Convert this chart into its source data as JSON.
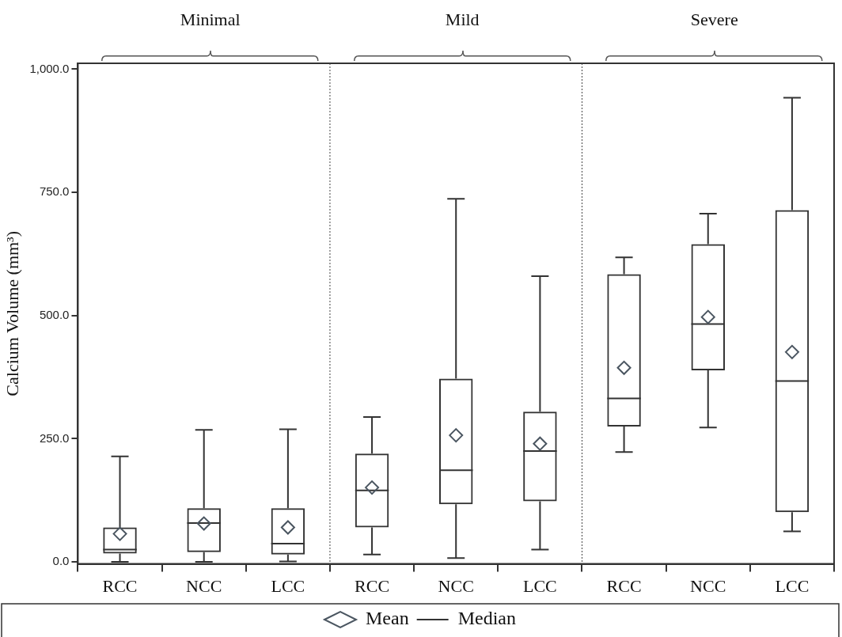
{
  "chart_data": {
    "type": "box",
    "ylabel": "Calcium Volume (mm³)",
    "categories": [
      "RCC",
      "NCC",
      "LCC",
      "RCC",
      "NCC",
      "LCC",
      "RCC",
      "NCC",
      "LCC"
    ],
    "annotations": [
      "Minimal",
      "Mild",
      "Severe"
    ],
    "ylim": [
      -4,
      1012
    ],
    "yticks": [
      {
        "value": 0,
        "label": "0.0"
      },
      {
        "value": 250,
        "label": "250.0"
      },
      {
        "value": 500,
        "label": "500.0"
      },
      {
        "value": 750,
        "label": "750.0"
      },
      {
        "value": 1000,
        "label": "1,000.0"
      }
    ],
    "grid": false,
    "legend": "bottom",
    "series": [
      {
        "name": "Mean",
        "type": "scatter",
        "marker": "diamond",
        "color": "#4a5560",
        "values": [
          57,
          78,
          70,
          151,
          257,
          240,
          394,
          497,
          426
        ]
      },
      {
        "name": "Median",
        "type": "box",
        "color": "#333333",
        "boxes": [
          {
            "low": 0,
            "q1": 17,
            "median": 25,
            "q3": 70,
            "high": 214
          },
          {
            "low": 0,
            "q1": 20,
            "median": 79,
            "q3": 109,
            "high": 268
          },
          {
            "low": 1,
            "q1": 15,
            "median": 37,
            "q3": 109,
            "high": 269
          },
          {
            "low": 15,
            "q1": 70,
            "median": 145,
            "q3": 220,
            "high": 294
          },
          {
            "low": 8,
            "q1": 117,
            "median": 186,
            "q3": 372,
            "high": 737
          },
          {
            "low": 25,
            "q1": 123,
            "median": 225,
            "q3": 305,
            "high": 580
          },
          {
            "low": 223,
            "q1": 275,
            "median": 332,
            "q3": 584,
            "high": 618
          },
          {
            "low": 273,
            "q1": 389,
            "median": 483,
            "q3": 645,
            "high": 707
          },
          {
            "low": 62,
            "q1": 101,
            "median": 367,
            "q3": 714,
            "high": 942
          }
        ]
      }
    ]
  }
}
